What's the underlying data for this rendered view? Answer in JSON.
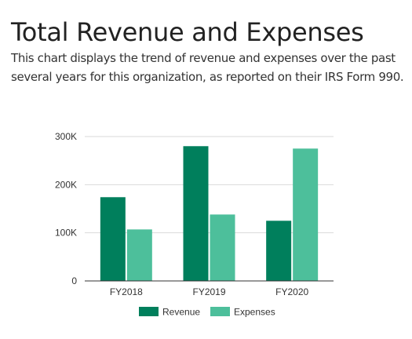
{
  "page": {
    "title": "Total Revenue and Expenses",
    "description": "This chart displays the trend of revenue and expenses over the past several years for this organization, as reported on their IRS Form 990."
  },
  "chart_data": {
    "type": "bar",
    "categories": [
      "FY2018",
      "FY2019",
      "FY2020"
    ],
    "series": [
      {
        "name": "Revenue",
        "values": [
          174000,
          280000,
          125000
        ],
        "color": "#007f5c"
      },
      {
        "name": "Expenses",
        "values": [
          107000,
          138000,
          275000
        ],
        "color": "#4dbf9b"
      }
    ],
    "ylim": [
      0,
      300000
    ],
    "y_ticks": [
      {
        "value": 0,
        "label": "0"
      },
      {
        "value": 100000,
        "label": "100K"
      },
      {
        "value": 200000,
        "label": "200K"
      },
      {
        "value": 300000,
        "label": "300K"
      }
    ],
    "grid": true,
    "legend_position": "bottom"
  }
}
